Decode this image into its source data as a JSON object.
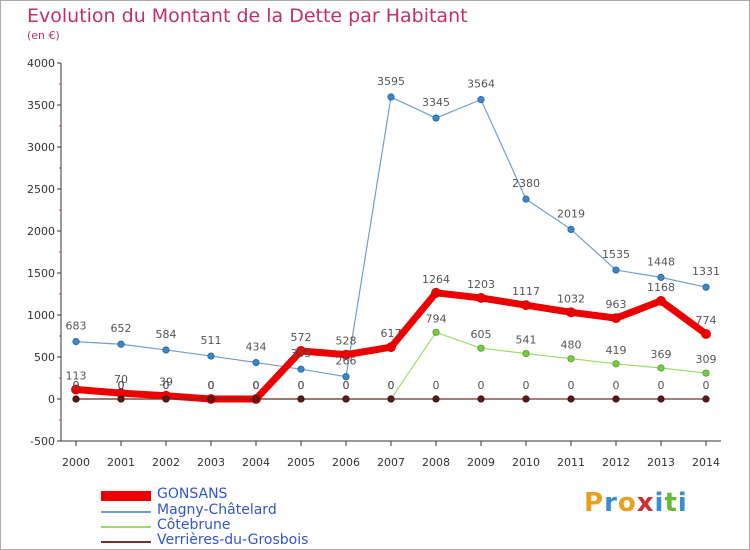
{
  "chart_data": {
    "type": "line",
    "title": "Evolution du Montant de la Dette par Habitant",
    "subtitle": "(en €)",
    "x": [
      "2000",
      "2001",
      "2002",
      "2003",
      "2004",
      "2005",
      "2006",
      "2007",
      "2008",
      "2009",
      "2010",
      "2011",
      "2012",
      "2013",
      "2014"
    ],
    "ylim": [
      -500,
      4000
    ],
    "yticks": [
      -500,
      0,
      500,
      1000,
      1500,
      2000,
      2500,
      3000,
      3500,
      4000
    ],
    "grid": false,
    "legend_position": "bottom-left",
    "series": [
      {
        "name": "GONSANS",
        "color": "#ee0000",
        "values": [
          113,
          70,
          39,
          0,
          0,
          572,
          528,
          617,
          1264,
          1203,
          1117,
          1032,
          963,
          1168,
          774
        ]
      },
      {
        "name": "Magny-Châtelard",
        "color": "#6f9fd0",
        "values": [
          683,
          652,
          584,
          511,
          434,
          355,
          266,
          3595,
          3345,
          3564,
          2380,
          2019,
          1535,
          1448,
          1331
        ]
      },
      {
        "name": "Côtebrune",
        "color": "#99dd66",
        "values": [
          0,
          0,
          0,
          0,
          0,
          0,
          0,
          0,
          794,
          605,
          541,
          480,
          419,
          369,
          309
        ]
      },
      {
        "name": "Verrières-du-Grosbois",
        "color": "#7a2d2d",
        "values": [
          0,
          0,
          0,
          0,
          0,
          0,
          0,
          0,
          0,
          0,
          0,
          0,
          0,
          0,
          0
        ]
      }
    ]
  },
  "logo": {
    "letters": [
      "P",
      "r",
      "o",
      "x",
      "i",
      "t",
      "i"
    ]
  }
}
